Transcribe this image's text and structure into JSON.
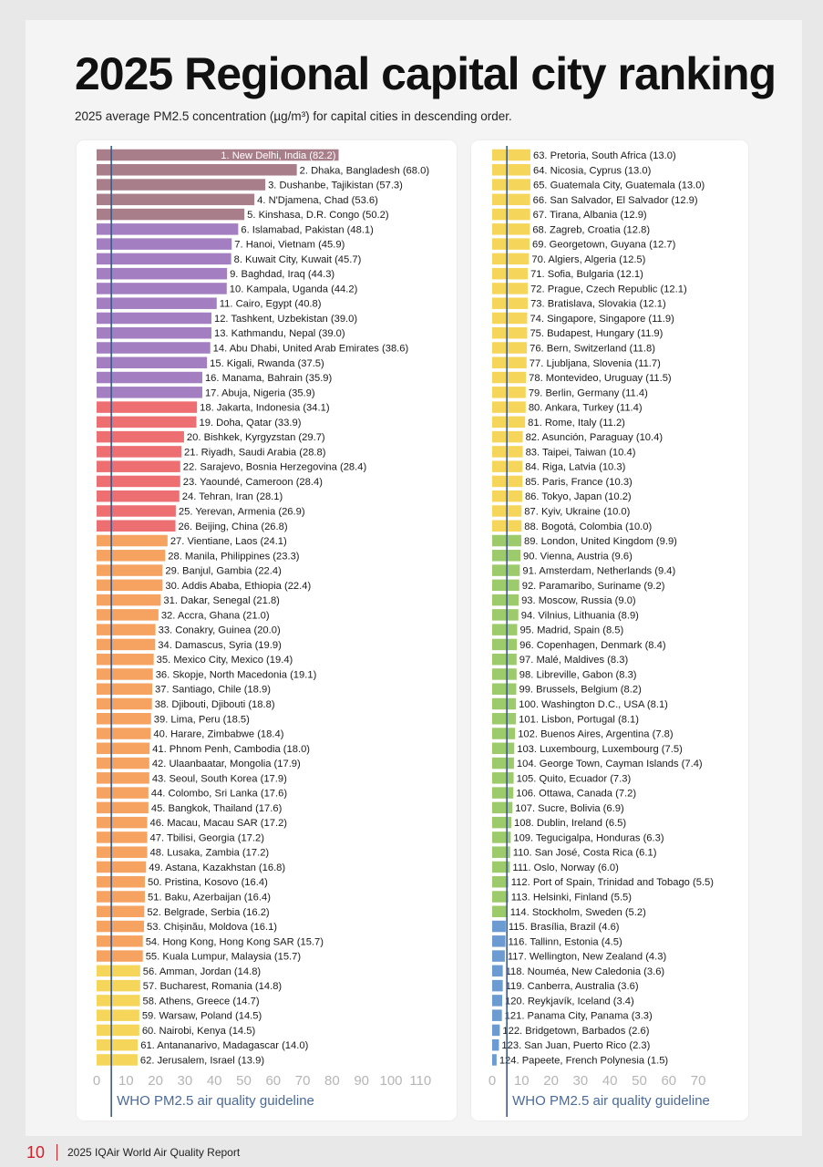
{
  "page": {
    "title": "2025 Regional capital city ranking",
    "subtitle": "2025 average PM2.5 concentration (µg/m³) for capital cities in descending order.",
    "footer_page_number": "10",
    "footer_report": "2025 IQAir World Air Quality Report"
  },
  "colors": {
    "red_accent": "#d11f2b",
    "guideline_line": "#3d5a8c",
    "guideline_text": "#4a6a9a",
    "tick_text": "#b5b5b5",
    "bands": [
      {
        "min": 0,
        "max": 5,
        "color": "#6b9bd1"
      },
      {
        "min": 5,
        "max": 10,
        "color": "#9dcb6b"
      },
      {
        "min": 10,
        "max": 15,
        "color": "#f6d65a"
      },
      {
        "min": 15,
        "max": 25,
        "color": "#f6a362"
      },
      {
        "min": 25,
        "max": 35,
        "color": "#ee6f72"
      },
      {
        "min": 35,
        "max": 50,
        "color": "#a37fc2"
      },
      {
        "min": 50,
        "max": 1000,
        "color": "#a87e8b"
      }
    ]
  },
  "chart_data": [
    {
      "type": "bar",
      "orientation": "horizontal",
      "xlim": [
        0,
        110
      ],
      "xticks": [
        0,
        10,
        20,
        30,
        40,
        50,
        60,
        70,
        80,
        90,
        100,
        110
      ],
      "guideline": {
        "value": 5,
        "label": "WHO PM2.5 air quality guideline"
      },
      "labels": [
        "1. New Delhi, India (82.2)",
        "2. Dhaka, Bangladesh (68.0)",
        "3. Dushanbe, Tajikistan (57.3)",
        "4. N'Djamena, Chad (53.6)",
        "5. Kinshasa, D.R. Congo (50.2)",
        "6. Islamabad, Pakistan (48.1)",
        "7. Hanoi, Vietnam (45.9)",
        "8. Kuwait City, Kuwait (45.7)",
        "9. Baghdad, Iraq (44.3)",
        "10. Kampala, Uganda (44.2)",
        "11. Cairo, Egypt (40.8)",
        "12. Tashkent, Uzbekistan (39.0)",
        "13. Kathmandu, Nepal (39.0)",
        "14. Abu Dhabi, United Arab Emirates (38.6)",
        "15. Kigali, Rwanda (37.5)",
        "16. Manama, Bahrain (35.9)",
        "17. Abuja, Nigeria (35.9)",
        "18. Jakarta, Indonesia (34.1)",
        "19. Doha, Qatar (33.9)",
        "20. Bishkek, Kyrgyzstan (29.7)",
        "21. Riyadh, Saudi Arabia (28.8)",
        "22. Sarajevo, Bosnia Herzegovina (28.4)",
        "23. Yaoundé, Cameroon (28.4)",
        "24. Tehran, Iran (28.1)",
        "25. Yerevan, Armenia (26.9)",
        "26. Beijing, China (26.8)",
        "27. Vientiane, Laos (24.1)",
        "28. Manila, Philippines (23.3)",
        "29. Banjul, Gambia (22.4)",
        "30. Addis Ababa, Ethiopia (22.4)",
        "31. Dakar, Senegal (21.8)",
        "32. Accra, Ghana (21.0)",
        "33. Conakry, Guinea (20.0)",
        "34. Damascus, Syria (19.9)",
        "35. Mexico City, Mexico (19.4)",
        "36. Skopje, North Macedonia (19.1)",
        "37. Santiago, Chile (18.9)",
        "38. Djibouti, Djibouti (18.8)",
        "39. Lima, Peru (18.5)",
        "40. Harare, Zimbabwe (18.4)",
        "41. Phnom Penh, Cambodia (18.0)",
        "42. Ulaanbaatar, Mongolia (17.9)",
        "43. Seoul, South Korea (17.9)",
        "44. Colombo, Sri Lanka (17.6)",
        "45. Bangkok, Thailand (17.6)",
        "46. Macau, Macau SAR (17.2)",
        "47. Tbilisi, Georgia (17.2)",
        "48. Lusaka, Zambia (17.2)",
        "49. Astana, Kazakhstan (16.8)",
        "50. Pristina, Kosovo (16.4)",
        "51. Baku, Azerbaijan (16.4)",
        "52. Belgrade, Serbia (16.2)",
        "53. Chișinău, Moldova (16.1)",
        "54. Hong Kong, Hong Kong SAR (15.7)",
        "55. Kuala Lumpur, Malaysia (15.7)",
        "56. Amman, Jordan (14.8)",
        "57. Bucharest, Romania (14.8)",
        "58. Athens, Greece (14.7)",
        "59. Warsaw, Poland (14.5)",
        "60. Nairobi, Kenya (14.5)",
        "61. Antananarivo, Madagascar (14.0)",
        "62. Jerusalem, Israel (13.9)"
      ],
      "values": [
        82.2,
        68.0,
        57.3,
        53.6,
        50.2,
        48.1,
        45.9,
        45.7,
        44.3,
        44.2,
        40.8,
        39.0,
        39.0,
        38.6,
        37.5,
        35.9,
        35.9,
        34.1,
        33.9,
        29.7,
        28.8,
        28.4,
        28.4,
        28.1,
        26.9,
        26.8,
        24.1,
        23.3,
        22.4,
        22.4,
        21.8,
        21.0,
        20.0,
        19.9,
        19.4,
        19.1,
        18.9,
        18.8,
        18.5,
        18.4,
        18.0,
        17.9,
        17.9,
        17.6,
        17.6,
        17.2,
        17.2,
        17.2,
        16.8,
        16.4,
        16.4,
        16.2,
        16.1,
        15.7,
        15.7,
        14.8,
        14.8,
        14.7,
        14.5,
        14.5,
        14.0,
        13.9
      ]
    },
    {
      "type": "bar",
      "orientation": "horizontal",
      "xlim": [
        0,
        70
      ],
      "xticks": [
        0,
        10,
        20,
        30,
        40,
        50,
        60,
        70
      ],
      "guideline": {
        "value": 5,
        "label": "WHO PM2.5 air quality guideline"
      },
      "labels": [
        "63. Pretoria, South Africa (13.0)",
        "64. Nicosia, Cyprus (13.0)",
        "65. Guatemala City, Guatemala (13.0)",
        "66. San Salvador, El Salvador (12.9)",
        "67. Tirana, Albania (12.9)",
        "68. Zagreb, Croatia (12.8)",
        "69. Georgetown, Guyana (12.7)",
        "70. Algiers, Algeria (12.5)",
        "71. Sofia, Bulgaria (12.1)",
        "72. Prague, Czech Republic (12.1)",
        "73. Bratislava, Slovakia (12.1)",
        "74. Singapore, Singapore (11.9)",
        "75. Budapest, Hungary (11.9)",
        "76. Bern, Switzerland (11.8)",
        "77. Ljubljana, Slovenia (11.7)",
        "78. Montevideo, Uruguay (11.5)",
        "79. Berlin, Germany (11.4)",
        "80. Ankara, Turkey (11.4)",
        "81. Rome, Italy (11.2)",
        "82. Asunción, Paraguay (10.4)",
        "83. Taipei, Taiwan (10.4)",
        "84. Riga, Latvia (10.3)",
        "85. Paris, France (10.3)",
        "86. Tokyo, Japan (10.2)",
        "87. Kyiv, Ukraine (10.0)",
        "88. Bogotá, Colombia (10.0)",
        "89. London, United Kingdom (9.9)",
        "90. Vienna, Austria (9.6)",
        "91. Amsterdam, Netherlands (9.4)",
        "92. Paramaribo, Suriname (9.2)",
        "93. Moscow, Russia (9.0)",
        "94. Vilnius, Lithuania (8.9)",
        "95. Madrid, Spain (8.5)",
        "96. Copenhagen, Denmark (8.4)",
        "97. Malé, Maldives (8.3)",
        "98. Libreville, Gabon (8.3)",
        "99. Brussels, Belgium (8.2)",
        "100. Washington D.C., USA (8.1)",
        "101. Lisbon, Portugal (8.1)",
        "102. Buenos Aires, Argentina (7.8)",
        "103. Luxembourg, Luxembourg (7.5)",
        "104. George Town, Cayman Islands (7.4)",
        "105. Quito, Ecuador (7.3)",
        "106. Ottawa, Canada (7.2)",
        "107. Sucre, Bolivia (6.9)",
        "108. Dublin, Ireland (6.5)",
        "109. Tegucigalpa, Honduras (6.3)",
        "110. San José, Costa Rica (6.1)",
        "111. Oslo, Norway (6.0)",
        "112. Port of Spain, Trinidad and Tobago (5.5)",
        "113. Helsinki, Finland (5.5)",
        "114. Stockholm, Sweden (5.2)",
        "115. Brasília, Brazil (4.6)",
        "116. Tallinn, Estonia (4.5)",
        "117. Wellington, New Zealand (4.3)",
        "118. Nouméa, New Caledonia (3.6)",
        "119. Canberra, Australia (3.6)",
        "120. Reykjavík, Iceland (3.4)",
        "121. Panama City, Panama (3.3)",
        "122. Bridgetown, Barbados (2.6)",
        "123. San Juan, Puerto Rico (2.3)",
        "124. Papeete, French Polynesia (1.5)"
      ],
      "values": [
        13.0,
        13.0,
        13.0,
        12.9,
        12.9,
        12.8,
        12.7,
        12.5,
        12.1,
        12.1,
        12.1,
        11.9,
        11.9,
        11.8,
        11.7,
        11.5,
        11.4,
        11.4,
        11.2,
        10.4,
        10.4,
        10.3,
        10.3,
        10.2,
        10.0,
        10.0,
        9.9,
        9.6,
        9.4,
        9.2,
        9.0,
        8.9,
        8.5,
        8.4,
        8.3,
        8.3,
        8.2,
        8.1,
        8.1,
        7.8,
        7.5,
        7.4,
        7.3,
        7.2,
        6.9,
        6.5,
        6.3,
        6.1,
        6.0,
        5.5,
        5.5,
        5.2,
        4.6,
        4.5,
        4.3,
        3.6,
        3.6,
        3.4,
        3.3,
        2.6,
        2.3,
        1.5
      ]
    }
  ]
}
